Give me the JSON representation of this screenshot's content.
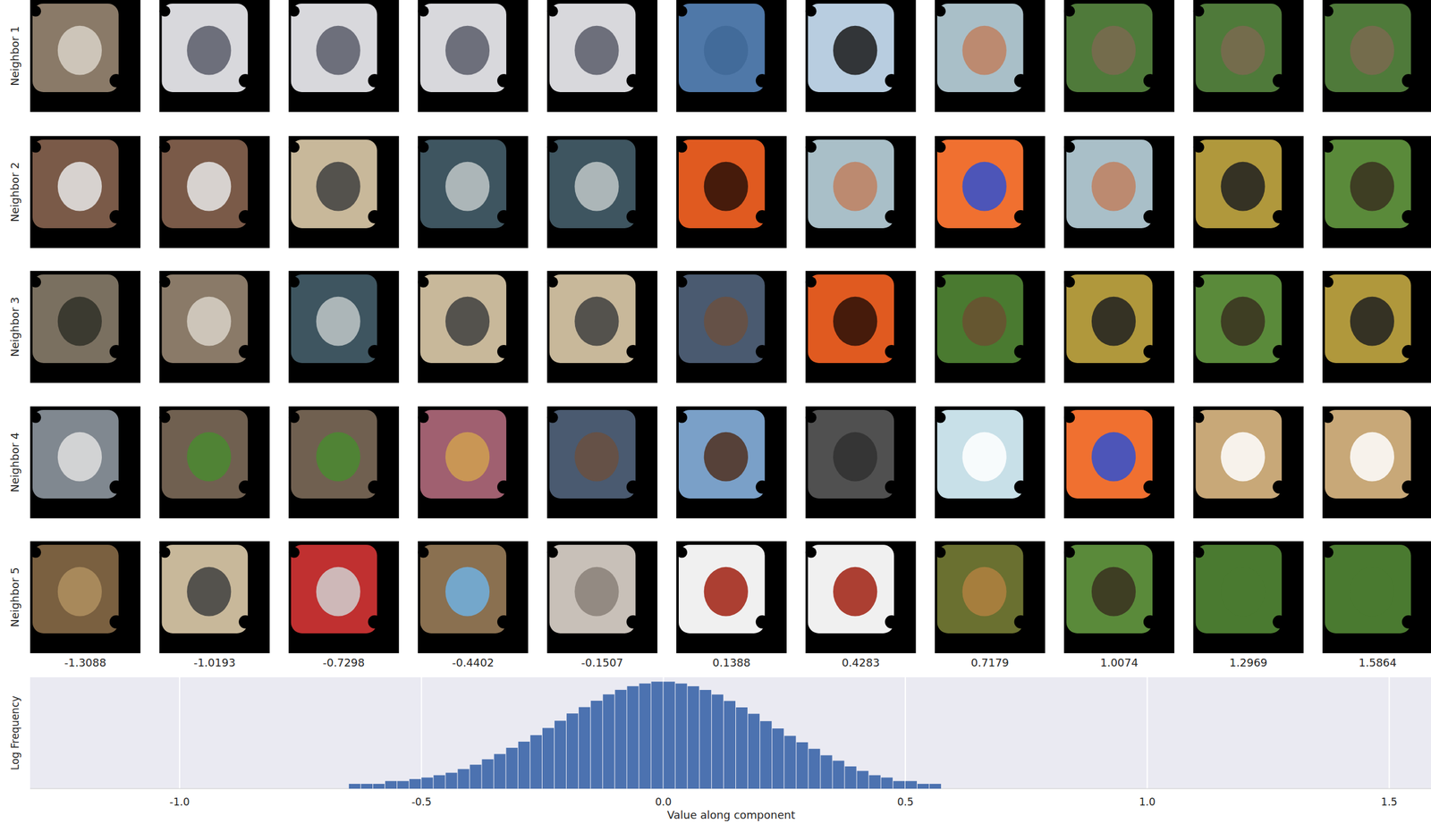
{
  "chart_data": {
    "type": "histogram",
    "xlabel": "Value along component",
    "ylabel": "Log Frequency",
    "color": "#4c72b0",
    "log": "y",
    "grid": true,
    "tick_labels": "x",
    "xlim": [
      -1.3088,
      1.5864
    ],
    "ylim": [
      1,
      10000000
    ],
    "xticks": [
      {
        "value": -1.0,
        "label": "-1.0"
      },
      {
        "value": -0.5,
        "label": "-0.5"
      },
      {
        "value": 0.0,
        "label": "0.0"
      },
      {
        "value": 0.5,
        "label": "0.5"
      },
      {
        "value": 1.0,
        "label": "1.0"
      },
      {
        "value": 1.5,
        "label": "1.5"
      }
    ],
    "bins": [
      -0.65,
      -0.625,
      -0.6,
      -0.575,
      -0.55,
      -0.525,
      -0.5,
      -0.475,
      -0.45,
      -0.425,
      -0.4,
      -0.375,
      -0.35,
      -0.325,
      -0.3,
      -0.275,
      -0.25,
      -0.225,
      -0.2,
      -0.175,
      -0.15,
      -0.125,
      -0.1,
      -0.075,
      -0.05,
      -0.025,
      0.0,
      0.025,
      0.05,
      0.075,
      0.1,
      0.125,
      0.15,
      0.175,
      0.2,
      0.225,
      0.25,
      0.275,
      0.3,
      0.325,
      0.35,
      0.375,
      0.4,
      0.425,
      0.45,
      0.475,
      0.5,
      0.525,
      0.55,
      0.575,
      0.6,
      0.625,
      0.65
    ],
    "counts": [
      2,
      2,
      2,
      3,
      3,
      4,
      5,
      7,
      10,
      17,
      32,
      70,
      150,
      370,
      900,
      2300,
      6500,
      18500,
      53000,
      133000,
      335000,
      840000,
      1620000,
      2750000,
      4070000,
      5310000,
      5290000,
      4050000,
      2730000,
      1600000,
      825000,
      325000,
      128000,
      50800,
      17500,
      6050,
      2080,
      820,
      320,
      125,
      57,
      25,
      13,
      7,
      5,
      3,
      3,
      2,
      2,
      1,
      1,
      1
    ]
  },
  "neighbors": {
    "row_labels": [
      "Neighbor 1",
      "Neighbor 2",
      "Neighbor 3",
      "Neighbor 4",
      "Neighbor 5"
    ],
    "column_values": [
      -1.3088,
      -1.0193,
      -0.7298,
      -0.4402,
      -0.1507,
      0.1388,
      0.4283,
      0.7179,
      1.0074,
      1.2969,
      1.5864
    ]
  }
}
